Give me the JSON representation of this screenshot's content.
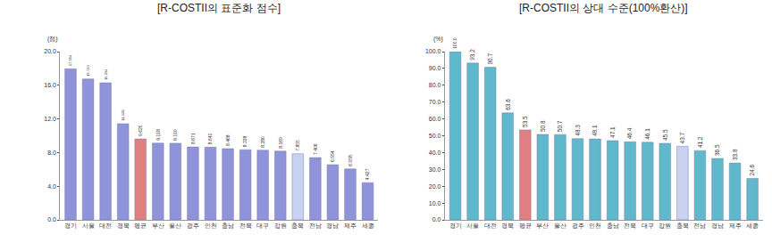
{
  "chart_data": [
    {
      "type": "bar",
      "title": "[R-COSTII의 표준화 점수]",
      "ylabel": "(점)",
      "categories": [
        "경기",
        "서울",
        "대전",
        "경북",
        "평균",
        "부산",
        "울산",
        "광주",
        "인천",
        "충남",
        "전북",
        "대구",
        "강원",
        "충북",
        "전남",
        "경남",
        "제주",
        "세종"
      ],
      "values": [
        17.964,
        16.743,
        16.294,
        11.428,
        9.62,
        9.118,
        9.11,
        8.671,
        8.641,
        8.468,
        8.338,
        8.28,
        8.169,
        7.855,
        7.406,
        6.554,
        6.058,
        4.427
      ],
      "value_labels": [
        "17.964",
        "16.743",
        "16.294",
        "11.428",
        "9.620",
        "9.118",
        "9.110",
        "8.671",
        "8.641",
        "8.468",
        "8.338",
        "8.280",
        "8.169",
        "7.855",
        "7.406",
        "6.554",
        "6.058",
        "4.427"
      ],
      "colors": [
        "#8f93da",
        "#8f93da",
        "#8f93da",
        "#8f93da",
        "#e07f7f",
        "#8f93da",
        "#8f93da",
        "#8f93da",
        "#8f93da",
        "#8f93da",
        "#8f93da",
        "#8f93da",
        "#8f93da",
        "#c9d2f0",
        "#8f93da",
        "#8f93da",
        "#8f93da",
        "#8f93da"
      ],
      "ylim": [
        0,
        20
      ],
      "yticks": [
        {
          "value": 0,
          "label": "0.0"
        },
        {
          "value": 4,
          "label": "4.0"
        },
        {
          "value": 8,
          "label": "8.0"
        },
        {
          "value": 12,
          "label": "12.0"
        },
        {
          "value": 16,
          "label": "16.0"
        },
        {
          "value": 20,
          "label": "20.0"
        }
      ],
      "grid": false,
      "data_labels": true
    },
    {
      "type": "bar",
      "title": "[R-COSTII의 상대 수준(100%환산)]",
      "ylabel": "(%)",
      "categories": [
        "경기",
        "서울",
        "대전",
        "경북",
        "평균",
        "부산",
        "울산",
        "광주",
        "인천",
        "충남",
        "전북",
        "대구",
        "강원",
        "충북",
        "전남",
        "경남",
        "제주",
        "세종"
      ],
      "values": [
        100.0,
        93.2,
        90.7,
        63.6,
        53.5,
        50.8,
        50.7,
        48.3,
        48.1,
        47.1,
        46.4,
        46.1,
        45.5,
        43.7,
        41.2,
        36.5,
        33.8,
        24.6
      ],
      "value_labels": [
        "100.0",
        "93.2",
        "90.7",
        "63.6",
        "53.5",
        "50.8",
        "50.7",
        "48.3",
        "48.1",
        "47.1",
        "46.4",
        "46.1",
        "45.5",
        "43.7",
        "41.2",
        "36.5",
        "33.8",
        "24.6"
      ],
      "colors": [
        "#5fb8cc",
        "#5fb8cc",
        "#5fb8cc",
        "#5fb8cc",
        "#e07f7f",
        "#5fb8cc",
        "#5fb8cc",
        "#5fb8cc",
        "#5fb8cc",
        "#5fb8cc",
        "#5fb8cc",
        "#5fb8cc",
        "#5fb8cc",
        "#c9d2f0",
        "#5fb8cc",
        "#5fb8cc",
        "#5fb8cc",
        "#5fb8cc"
      ],
      "ylim": [
        0,
        100
      ],
      "yticks": [
        {
          "value": 0,
          "label": "0.0"
        },
        {
          "value": 10,
          "label": "10.0"
        },
        {
          "value": 20,
          "label": "20.0"
        },
        {
          "value": 30,
          "label": "30.0"
        },
        {
          "value": 40,
          "label": "40.0"
        },
        {
          "value": 50,
          "label": "50.0"
        },
        {
          "value": 60,
          "label": "60.0"
        },
        {
          "value": 70,
          "label": "70.0"
        },
        {
          "value": 80,
          "label": "80.0"
        },
        {
          "value": 90,
          "label": "90.0"
        },
        {
          "value": 100,
          "label": "100.0"
        }
      ],
      "grid": false,
      "data_labels": true
    }
  ]
}
